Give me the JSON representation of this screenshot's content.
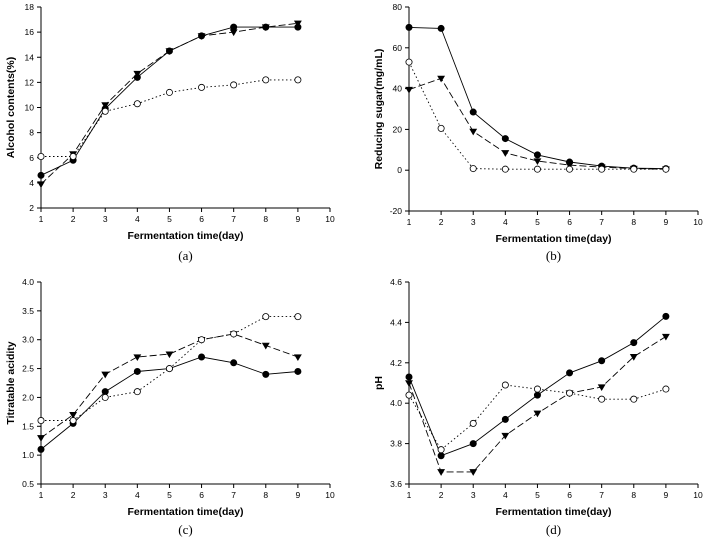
{
  "chart_data": [
    {
      "type": "line",
      "panel_label": "(a)",
      "xlabel": "Fermentation time(day)",
      "ylabel": "Alcohol contents(%)",
      "xlim": [
        1,
        10
      ],
      "ylim": [
        2,
        18
      ],
      "xticks": [
        1,
        2,
        3,
        4,
        5,
        6,
        7,
        8,
        9,
        10
      ],
      "yticks": [
        2,
        4,
        6,
        8,
        10,
        12,
        14,
        16,
        18
      ],
      "x": [
        1,
        2,
        3,
        4,
        5,
        6,
        7,
        8,
        9
      ],
      "grid": false,
      "series": [
        {
          "marker": "filled-circle",
          "line": "solid",
          "values": [
            4.6,
            5.8,
            9.9,
            12.4,
            14.5,
            15.7,
            16.4,
            16.4,
            16.4
          ]
        },
        {
          "marker": "filled-triangle-down",
          "line": "dashed",
          "values": [
            3.9,
            6.3,
            10.2,
            12.7,
            14.5,
            15.7,
            16.0,
            16.4,
            16.7
          ]
        },
        {
          "marker": "open-circle",
          "line": "dotted",
          "values": [
            6.1,
            6.1,
            9.7,
            10.3,
            11.2,
            11.6,
            11.8,
            12.2,
            12.2
          ]
        }
      ]
    },
    {
      "type": "line",
      "panel_label": "(b)",
      "xlabel": "Fermentation time(day)",
      "ylabel": "Reducing sugar(mg/mL)",
      "xlim": [
        1,
        10
      ],
      "ylim": [
        -20,
        80
      ],
      "xticks": [
        1,
        2,
        3,
        4,
        5,
        6,
        7,
        8,
        9,
        10
      ],
      "yticks": [
        -20,
        0,
        20,
        40,
        60,
        80
      ],
      "x": [
        1,
        2,
        3,
        4,
        5,
        6,
        7,
        8,
        9
      ],
      "grid": false,
      "series": [
        {
          "marker": "filled-circle",
          "line": "solid",
          "values": [
            70,
            69.5,
            28.5,
            15.5,
            7.5,
            4,
            2,
            1,
            0.8
          ]
        },
        {
          "marker": "filled-triangle-down",
          "line": "dashed",
          "values": [
            39.5,
            45,
            19,
            8.5,
            4.5,
            2.5,
            1.5,
            0.8,
            0.5
          ]
        },
        {
          "marker": "open-circle",
          "line": "dotted",
          "values": [
            53,
            20.5,
            0.8,
            0.5,
            0.5,
            0.5,
            0.5,
            0.5,
            0.5
          ]
        }
      ]
    },
    {
      "type": "line",
      "panel_label": "(c)",
      "xlabel": "Fermentation time(day)",
      "ylabel": "Titratable acidity",
      "xlim": [
        1,
        10
      ],
      "ylim": [
        0.5,
        4.0
      ],
      "xticks": [
        1,
        2,
        3,
        4,
        5,
        6,
        7,
        8,
        9,
        10
      ],
      "yticks": [
        0.5,
        1.0,
        1.5,
        2.0,
        2.5,
        3.0,
        3.5,
        4.0
      ],
      "x": [
        1,
        2,
        3,
        4,
        5,
        6,
        7,
        8,
        9
      ],
      "grid": false,
      "series": [
        {
          "marker": "filled-circle",
          "line": "solid",
          "values": [
            1.1,
            1.55,
            2.1,
            2.45,
            2.5,
            2.7,
            2.6,
            2.4,
            2.45
          ]
        },
        {
          "marker": "filled-triangle-down",
          "line": "dashed",
          "values": [
            1.3,
            1.7,
            2.4,
            2.7,
            2.75,
            3.0,
            3.1,
            2.9,
            2.7
          ]
        },
        {
          "marker": "open-circle",
          "line": "dotted",
          "values": [
            1.6,
            1.6,
            2.0,
            2.1,
            2.5,
            3.0,
            3.1,
            3.4,
            3.4
          ]
        }
      ]
    },
    {
      "type": "line",
      "panel_label": "(d)",
      "xlabel": "Fermentation time(day)",
      "ylabel": "pH",
      "xlim": [
        1,
        10
      ],
      "ylim": [
        3.6,
        4.6
      ],
      "xticks": [
        1,
        2,
        3,
        4,
        5,
        6,
        7,
        8,
        9,
        10
      ],
      "yticks": [
        3.6,
        3.8,
        4.0,
        4.2,
        4.4,
        4.6
      ],
      "x": [
        1,
        2,
        3,
        4,
        5,
        6,
        7,
        8,
        9
      ],
      "grid": false,
      "series": [
        {
          "marker": "filled-circle",
          "line": "solid",
          "values": [
            4.13,
            3.74,
            3.8,
            3.92,
            4.04,
            4.15,
            4.21,
            4.3,
            4.43
          ]
        },
        {
          "marker": "filled-triangle-down",
          "line": "dashed",
          "values": [
            4.1,
            3.66,
            3.66,
            3.84,
            3.95,
            4.05,
            4.08,
            4.23,
            4.33
          ]
        },
        {
          "marker": "open-circle",
          "line": "dotted",
          "values": [
            4.04,
            3.77,
            3.9,
            4.09,
            4.07,
            4.05,
            4.02,
            4.02,
            4.07
          ]
        }
      ]
    }
  ]
}
